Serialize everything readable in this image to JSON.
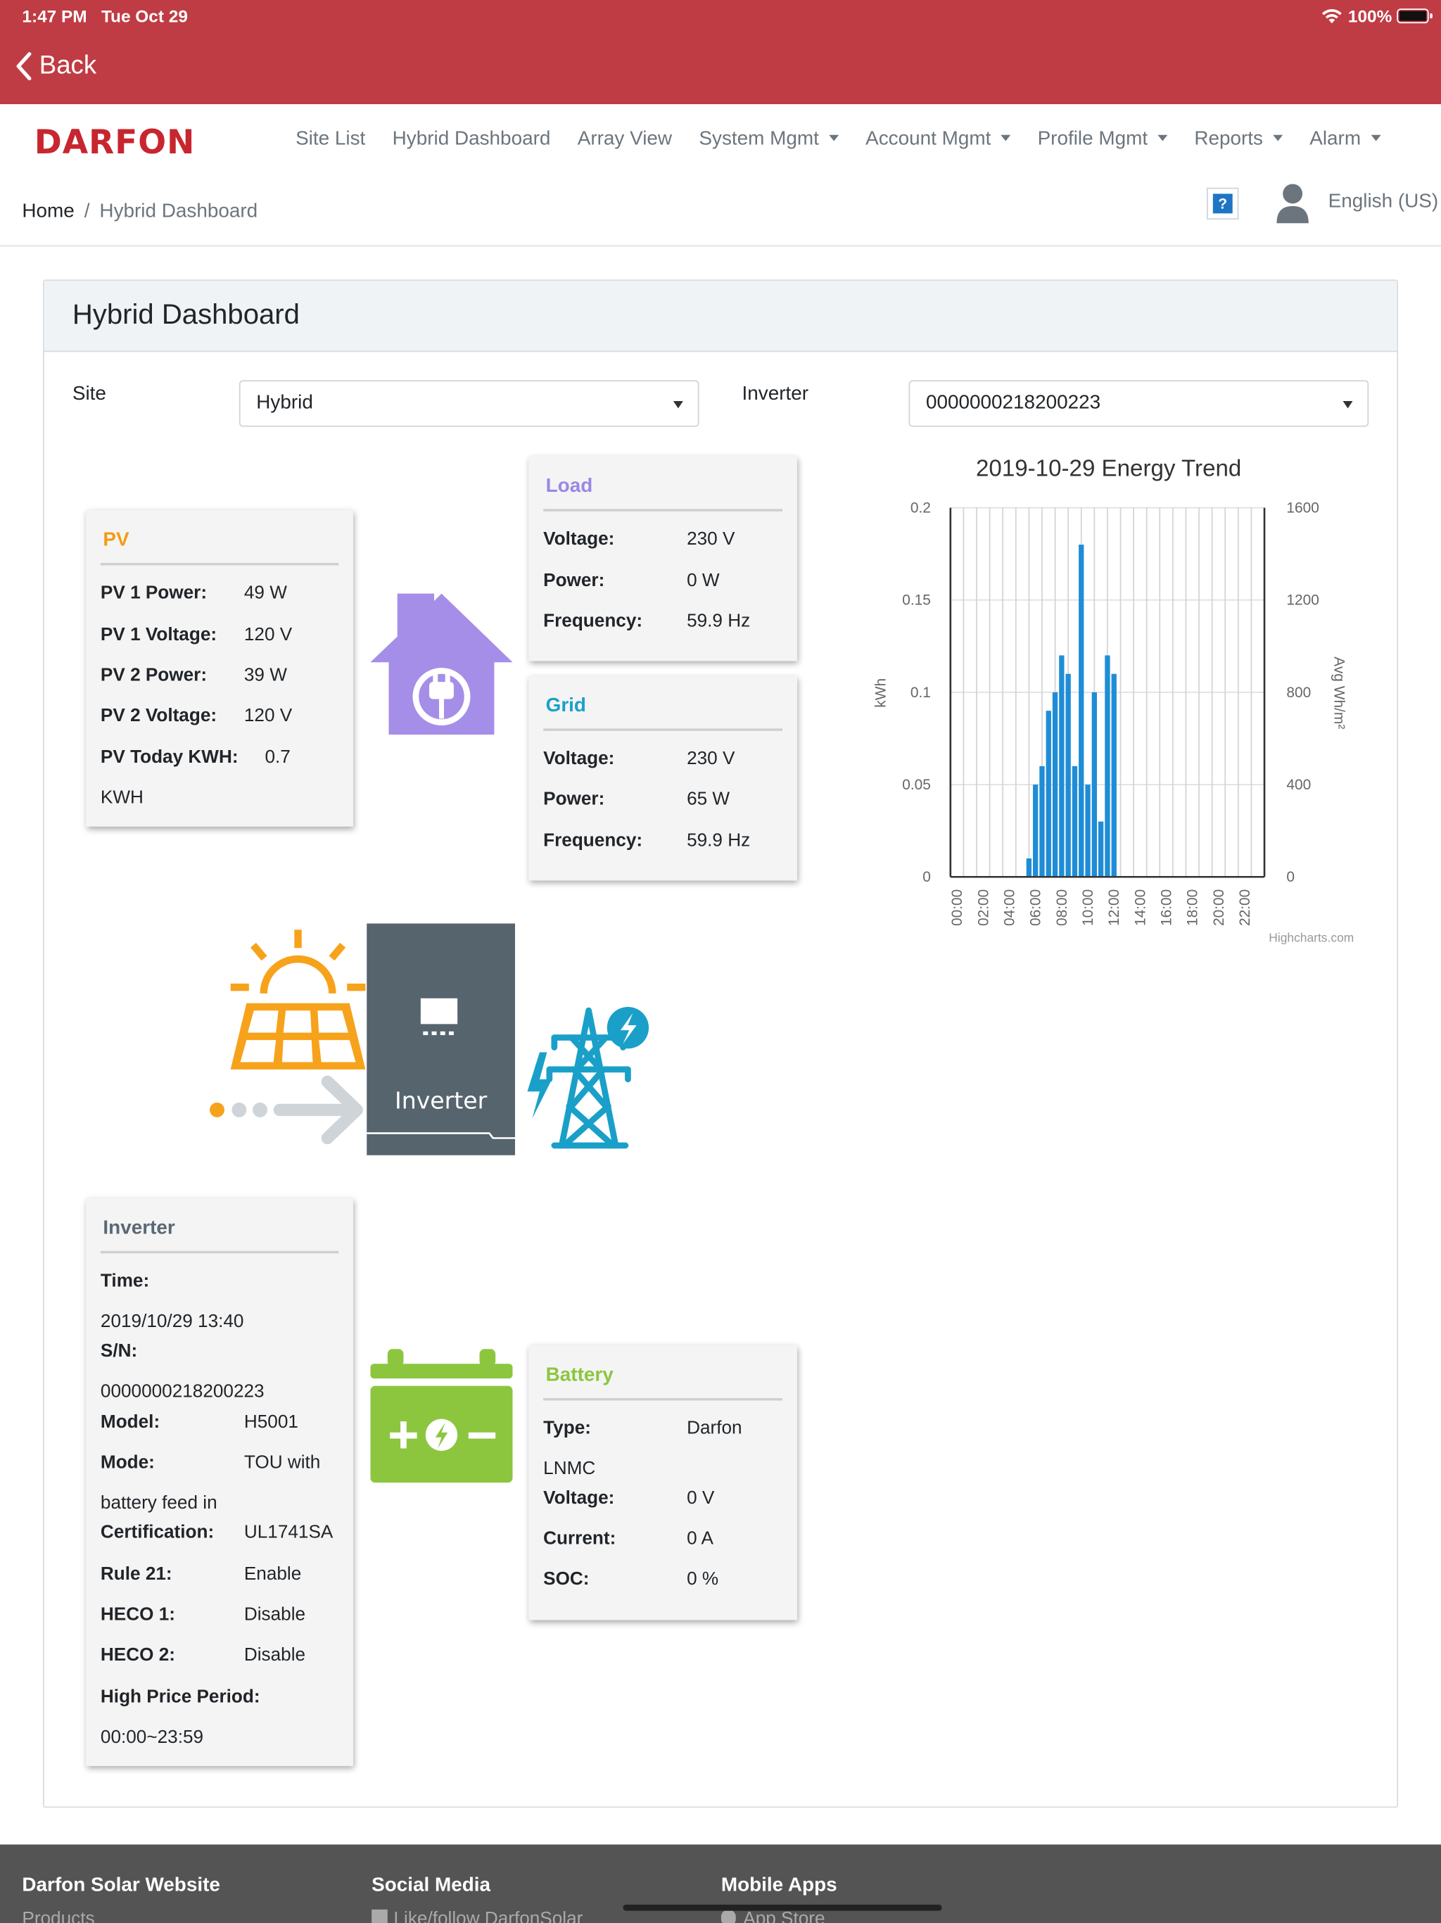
{
  "status": {
    "time": "1:47 PM",
    "date": "Tue Oct 29",
    "battery": "100%"
  },
  "topbar": {
    "back_label": "Back"
  },
  "brand": {
    "logo_text": "DARFON",
    "logo_color": "#c8262f",
    "accent": "#bf3c44"
  },
  "nav": {
    "items": [
      {
        "label": "Site List",
        "dropdown": false
      },
      {
        "label": "Hybrid Dashboard",
        "dropdown": false
      },
      {
        "label": "Array View",
        "dropdown": false
      },
      {
        "label": "System Mgmt",
        "dropdown": true
      },
      {
        "label": "Account Mgmt",
        "dropdown": true
      },
      {
        "label": "Profile Mgmt",
        "dropdown": true
      },
      {
        "label": "Reports",
        "dropdown": true
      },
      {
        "label": "Alarm",
        "dropdown": true
      }
    ]
  },
  "breadcrumb": {
    "home": "Home",
    "separator": "/",
    "current": "Hybrid Dashboard"
  },
  "header_right": {
    "help_icon": "?",
    "language": "English (US)"
  },
  "dashboard": {
    "title": "Hybrid Dashboard",
    "site_label": "Site",
    "site_value": "Hybrid",
    "inverter_label": "Inverter",
    "inverter_value": "0000000218200223"
  },
  "pv": {
    "title": "PV",
    "title_color": "#f39c12",
    "rows": [
      {
        "label": "PV 1 Power:",
        "value": "49 W"
      },
      {
        "label": "PV 1 Voltage:",
        "value": "120 V"
      },
      {
        "label": "PV 2 Power:",
        "value": "39 W"
      },
      {
        "label": "PV 2 Voltage:",
        "value": "120 V"
      },
      {
        "label": "PV Today KWH:",
        "value": "0.7",
        "value_cont": "KWH"
      }
    ]
  },
  "load": {
    "title": "Load",
    "title_color": "#9b87e6",
    "rows": [
      {
        "label": "Voltage:",
        "value": "230 V"
      },
      {
        "label": "Power:",
        "value": "0 W"
      },
      {
        "label": "Frequency:",
        "value": "59.9 Hz"
      }
    ]
  },
  "grid": {
    "title": "Grid",
    "title_color": "#1aa0c8",
    "rows": [
      {
        "label": "Voltage:",
        "value": "230 V"
      },
      {
        "label": "Power:",
        "value": "65 W"
      },
      {
        "label": "Frequency:",
        "value": "59.9 Hz"
      }
    ]
  },
  "inverter_box": {
    "title": "Inverter",
    "title_color": "#5a6874",
    "time_label": "Time:",
    "time_value": "2019/10/29 13:40",
    "sn_label": "S/N:",
    "sn_value": "0000000218200223",
    "model_label": "Model:",
    "model_value": "H5001",
    "mode_label": "Mode:",
    "mode_value": "TOU with",
    "mode_value_cont": "battery feed in",
    "cert_label": "Certification:",
    "cert_value": "UL1741SA",
    "rule21_label": "Rule 21:",
    "rule21_value": "Enable",
    "heco1_label": "HECO 1:",
    "heco1_value": "Disable",
    "heco2_label": "HECO 2:",
    "heco2_value": "Disable",
    "hpp_label": "High Price Period:",
    "hpp_value": "00:00~23:59"
  },
  "battery": {
    "title": "Battery",
    "title_color": "#8cc63f",
    "type_label": "Type:",
    "type_value": "Darfon",
    "type_value_cont": "LNMC",
    "voltage_label": "Voltage:",
    "voltage_value": "0 V",
    "current_label": "Current:",
    "current_value": "0 A",
    "soc_label": "SOC:",
    "soc_value": "0 %"
  },
  "diagram": {
    "inverter_label": "Inverter",
    "house_icon": "house-plug-icon",
    "solar_icon": "solar-panel-icon",
    "tower_icon": "power-tower-icon",
    "battery_icon": "battery-icon",
    "colors": {
      "house": "#a58ee8",
      "solar": "#f7a21b",
      "tower": "#1aa0c8",
      "battery": "#8cc63f",
      "inverter": "#56646e"
    }
  },
  "chart_data": {
    "type": "bar",
    "title": "2019-10-29 Energy Trend",
    "ylabel": "kWh",
    "y2label": "Avg Wh/m²",
    "ylim": [
      0,
      0.2
    ],
    "y2lim": [
      0,
      1600
    ],
    "yticks": [
      "0",
      "0.05",
      "0.1",
      "0.15",
      "0.2"
    ],
    "y2ticks": [
      "0",
      "400",
      "800",
      "1200",
      "1600"
    ],
    "xticks": [
      "00:00",
      "02:00",
      "04:00",
      "06:00",
      "08:00",
      "10:00",
      "12:00",
      "14:00",
      "16:00",
      "18:00",
      "20:00",
      "22:00"
    ],
    "grid": true,
    "bar_color": "#1f8dd6",
    "series": [
      {
        "x": [
          6,
          6.5,
          7,
          7.5,
          8,
          8.5,
          9,
          9.5,
          10,
          10.5,
          11,
          11.5,
          12,
          12.5
        ],
        "values": [
          0.01,
          0.05,
          0.06,
          0.09,
          0.1,
          0.12,
          0.11,
          0.06,
          0.18,
          0.05,
          0.1,
          0.03,
          0.12,
          0.11
        ]
      }
    ],
    "credits": "Highcharts.com"
  },
  "footer": {
    "col1_title": "Darfon Solar Website",
    "col1_sub": "Products",
    "col2_title": "Social Media",
    "col2_sub": "Like/follow DarfonSolar",
    "col3_title": "Mobile Apps",
    "col3_sub": "App Store"
  }
}
